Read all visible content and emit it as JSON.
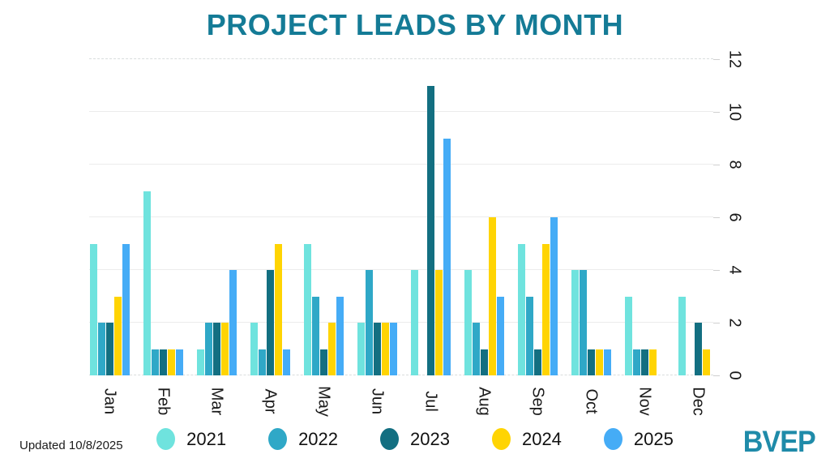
{
  "title": "PROJECT LEADS BY MONTH",
  "footer": {
    "updated": "Updated 10/8/2025",
    "logo": "BVEP"
  },
  "chart_data": {
    "type": "bar",
    "title": "PROJECT LEADS BY MONTH",
    "categories": [
      "Jan",
      "Feb",
      "Mar",
      "Apr",
      "May",
      "Jun",
      "Jul",
      "Aug",
      "Sep",
      "Oct",
      "Nov",
      "Dec"
    ],
    "series": [
      {
        "name": "2021",
        "color": "#6fe3de",
        "values": [
          5,
          7,
          1,
          2,
          5,
          2,
          4,
          4,
          5,
          4,
          3,
          3
        ]
      },
      {
        "name": "2022",
        "color": "#2fa8c7",
        "values": [
          2,
          1,
          2,
          1,
          3,
          4,
          0,
          2,
          3,
          4,
          1,
          0
        ]
      },
      {
        "name": "2023",
        "color": "#136f81",
        "values": [
          2,
          1,
          2,
          4,
          1,
          2,
          11,
          1,
          1,
          1,
          1,
          2
        ]
      },
      {
        "name": "2024",
        "color": "#ffd403",
        "values": [
          3,
          1,
          2,
          5,
          2,
          2,
          4,
          6,
          5,
          1,
          1,
          1
        ]
      },
      {
        "name": "2025",
        "color": "#45acf6",
        "values": [
          5,
          1,
          4,
          1,
          3,
          2,
          9,
          3,
          6,
          1,
          0,
          0
        ]
      }
    ],
    "xlabel": "",
    "ylabel": "",
    "ylim": [
      0,
      12
    ],
    "yticks": [
      0,
      2,
      4,
      6,
      8,
      10,
      12
    ],
    "grid": true,
    "yaxis_side": "right",
    "tick_label_rotation": 90,
    "legend_position": "bottom"
  }
}
